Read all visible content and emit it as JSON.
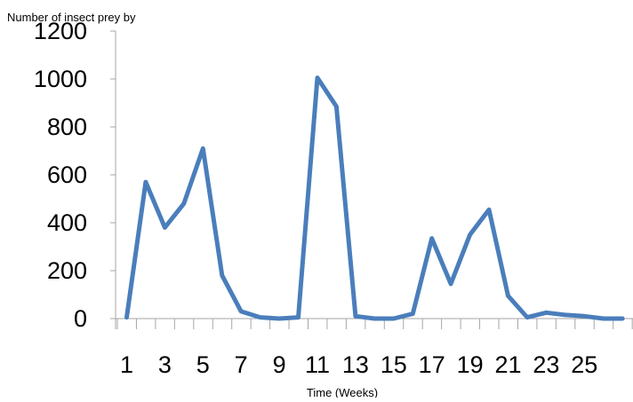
{
  "chart_data": {
    "type": "line",
    "title": "",
    "ylabel": "Number of insect prey by",
    "xlabel": "Time (Weeks)",
    "x": [
      1,
      2,
      3,
      4,
      5,
      6,
      7,
      8,
      9,
      10,
      11,
      12,
      13,
      14,
      15,
      16,
      17,
      18,
      19,
      20,
      21,
      22,
      23,
      24,
      25,
      26,
      27
    ],
    "xtick_labels": [
      "1",
      "3",
      "5",
      "7",
      "9",
      "11",
      "13",
      "15",
      "17",
      "19",
      "21",
      "23",
      "25"
    ],
    "ytick_labels": [
      "0",
      "200",
      "400",
      "600",
      "800",
      "1000",
      "1200"
    ],
    "yticks": [
      0,
      200,
      400,
      600,
      800,
      1000,
      1200
    ],
    "ylim": [
      0,
      1200
    ],
    "xlim": [
      0.5,
      27.5
    ],
    "grid": false,
    "series": [
      {
        "color": "#4a7ebb",
        "values": [
          5,
          570,
          380,
          480,
          710,
          180,
          30,
          5,
          0,
          5,
          1005,
          885,
          10,
          0,
          0,
          20,
          335,
          145,
          350,
          455,
          95,
          5,
          25,
          15,
          10,
          0,
          0
        ]
      }
    ]
  }
}
